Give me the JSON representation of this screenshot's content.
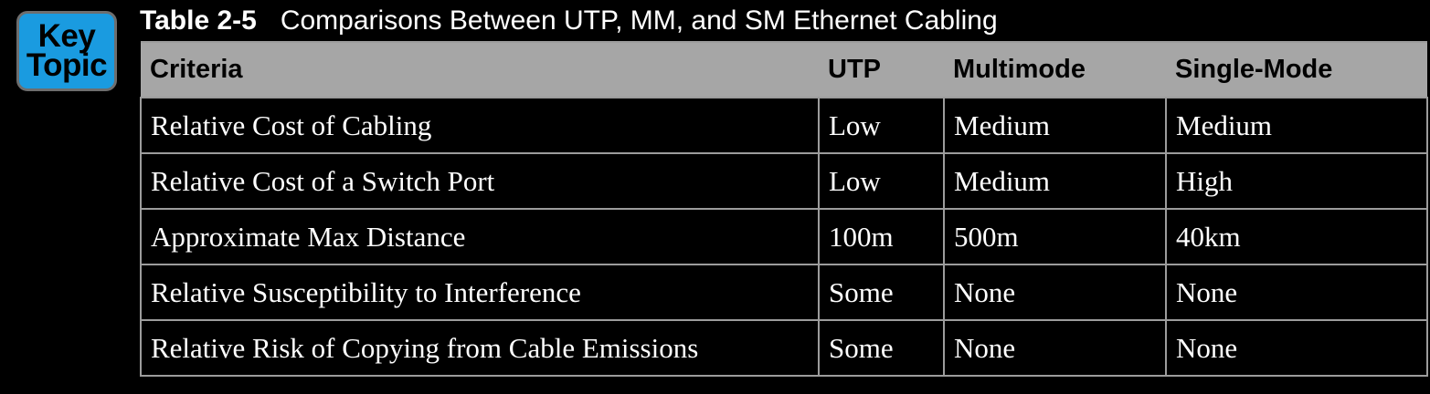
{
  "key_topic": {
    "line1": "Key",
    "line2": "Topic"
  },
  "caption": {
    "number": "Table 2-5",
    "title": "Comparisons Between UTP, MM, and SM Ethernet Cabling"
  },
  "table": {
    "headers": [
      "Criteria",
      "UTP",
      "Multimode",
      "Single-Mode"
    ],
    "rows": [
      [
        "Relative Cost of Cabling",
        "Low",
        "Medium",
        "Medium"
      ],
      [
        "Relative Cost of a Switch Port",
        "Low",
        "Medium",
        "High"
      ],
      [
        "Approximate Max Distance",
        "100m",
        "500m",
        "40km"
      ],
      [
        "Relative Susceptibility to Interference",
        "Some",
        "None",
        "None"
      ],
      [
        "Relative Risk of Copying from Cable Emissions",
        "Some",
        "None",
        "None"
      ]
    ]
  },
  "colors": {
    "key_topic_bg": "#1a9be0",
    "header_bg": "#a6a6a6",
    "page_bg": "#000000"
  }
}
